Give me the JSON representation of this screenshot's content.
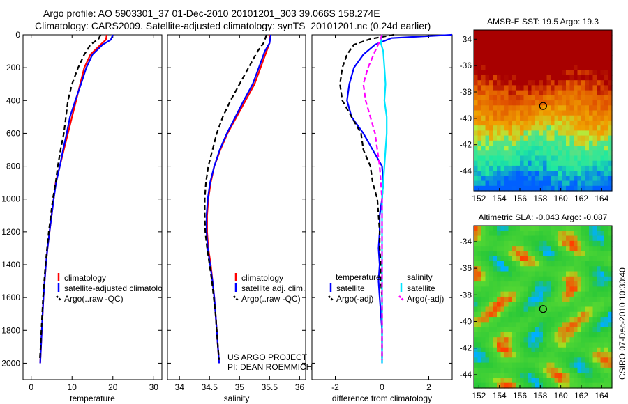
{
  "header": {
    "line1": "Argo profile: AO 5903301_37 01-Dec-2010 20101201_303 39.066S 158.274E",
    "line2": "Climatology: CARS2009. Satellite-adjusted climatology: synTS_20101201.nc (0.24d earlier)"
  },
  "footer": {
    "project": "US ARGO PROJECT",
    "pi": "PI: DEAN ROEMMICH",
    "credit": "CSIRO 07-Dec-2010 10:30:40"
  },
  "chart_data": [
    {
      "type": "line",
      "panel": "temperature",
      "xlabel": "temperature",
      "ylabel": "",
      "xlim": [
        -2,
        32
      ],
      "ylim": [
        2100,
        0
      ],
      "y_reversed": true,
      "xticks": [
        0,
        10,
        20,
        30
      ],
      "yticks": [
        0,
        200,
        400,
        600,
        800,
        1000,
        1200,
        1400,
        1600,
        1800,
        2000
      ],
      "legend": [
        "climatology",
        "satellite-adjusted climatology",
        "Argo(..raw -QC)"
      ],
      "legend_visible": [
        "climatology",
        "satellite-adjusted climatolo",
        "Argo(..raw -QC)"
      ],
      "series": [
        {
          "name": "climatology",
          "color": "#ff0000",
          "style": "solid",
          "points": [
            [
              18.5,
              0
            ],
            [
              18.3,
              30
            ],
            [
              17.0,
              60
            ],
            [
              14.5,
              120
            ],
            [
              13.0,
              200
            ],
            [
              12.0,
              300
            ],
            [
              11.0,
              400
            ],
            [
              10.0,
              500
            ],
            [
              9.0,
              600
            ],
            [
              8.0,
              700
            ],
            [
              7.0,
              800
            ],
            [
              6.0,
              900
            ],
            [
              5.5,
              1000
            ],
            [
              5.0,
              1100
            ],
            [
              4.5,
              1200
            ],
            [
              4.0,
              1300
            ],
            [
              3.6,
              1400
            ],
            [
              3.3,
              1500
            ],
            [
              3.0,
              1600
            ],
            [
              2.8,
              1700
            ],
            [
              2.6,
              1800
            ],
            [
              2.4,
              1900
            ],
            [
              2.2,
              2000
            ]
          ]
        },
        {
          "name": "satellite-adjusted climatology",
          "color": "#0000ff",
          "style": "solid",
          "points": [
            [
              20.0,
              0
            ],
            [
              19.5,
              30
            ],
            [
              17.5,
              60
            ],
            [
              15.0,
              120
            ],
            [
              13.5,
              200
            ],
            [
              12.2,
              300
            ],
            [
              10.8,
              400
            ],
            [
              9.5,
              500
            ],
            [
              8.7,
              600
            ],
            [
              7.8,
              700
            ],
            [
              7.0,
              800
            ],
            [
              6.1,
              900
            ],
            [
              5.5,
              1000
            ],
            [
              5.0,
              1100
            ],
            [
              4.5,
              1200
            ],
            [
              4.0,
              1300
            ],
            [
              3.6,
              1400
            ],
            [
              3.3,
              1500
            ],
            [
              3.0,
              1600
            ],
            [
              2.8,
              1700
            ],
            [
              2.6,
              1800
            ],
            [
              2.4,
              1900
            ],
            [
              2.2,
              2000
            ]
          ]
        },
        {
          "name": "Argo(..raw -QC)",
          "color": "#000000",
          "style": "dashed",
          "points": [
            [
              17.0,
              0
            ],
            [
              16.5,
              25
            ],
            [
              14.5,
              60
            ],
            [
              13.0,
              120
            ],
            [
              11.5,
              200
            ],
            [
              10.0,
              300
            ],
            [
              9.0,
              400
            ],
            [
              8.5,
              500
            ],
            [
              8.0,
              600
            ],
            [
              7.2,
              700
            ],
            [
              6.5,
              800
            ],
            [
              6.0,
              900
            ],
            [
              5.3,
              1000
            ],
            [
              4.8,
              1100
            ],
            [
              4.3,
              1200
            ],
            [
              3.9,
              1300
            ],
            [
              3.5,
              1400
            ],
            [
              3.2,
              1500
            ],
            [
              2.9,
              1600
            ],
            [
              2.7,
              1700
            ],
            [
              2.5,
              1800
            ],
            [
              2.3,
              1900
            ],
            [
              2.1,
              1980
            ]
          ]
        }
      ]
    },
    {
      "type": "line",
      "panel": "salinity",
      "xlabel": "salinity",
      "ylabel": "",
      "xlim": [
        33.8,
        36.1
      ],
      "ylim": [
        2100,
        0
      ],
      "y_reversed": true,
      "xticks": [
        34,
        34.5,
        35,
        35.5,
        36
      ],
      "legend": [
        "climatology",
        "satellite adj. clim.",
        "Argo(..raw -QC)"
      ],
      "series": [
        {
          "name": "climatology",
          "color": "#ff0000",
          "style": "solid",
          "points": [
            [
              35.5,
              0
            ],
            [
              35.5,
              50
            ],
            [
              35.45,
              100
            ],
            [
              35.35,
              200
            ],
            [
              35.25,
              300
            ],
            [
              35.1,
              400
            ],
            [
              34.95,
              500
            ],
            [
              34.8,
              600
            ],
            [
              34.68,
              700
            ],
            [
              34.58,
              800
            ],
            [
              34.52,
              900
            ],
            [
              34.48,
              1000
            ],
            [
              34.46,
              1100
            ],
            [
              34.46,
              1200
            ],
            [
              34.48,
              1300
            ],
            [
              34.52,
              1400
            ],
            [
              34.55,
              1500
            ],
            [
              34.58,
              1600
            ],
            [
              34.6,
              1700
            ],
            [
              34.62,
              1800
            ],
            [
              34.64,
              1900
            ],
            [
              34.66,
              2000
            ]
          ]
        },
        {
          "name": "satellite adj. clim.",
          "color": "#0000ff",
          "style": "solid",
          "points": [
            [
              35.52,
              0
            ],
            [
              35.5,
              50
            ],
            [
              35.42,
              100
            ],
            [
              35.32,
              200
            ],
            [
              35.22,
              300
            ],
            [
              35.07,
              400
            ],
            [
              34.93,
              500
            ],
            [
              34.79,
              600
            ],
            [
              34.67,
              700
            ],
            [
              34.58,
              800
            ],
            [
              34.51,
              900
            ],
            [
              34.47,
              1000
            ],
            [
              34.45,
              1100
            ],
            [
              34.45,
              1200
            ],
            [
              34.47,
              1300
            ],
            [
              34.51,
              1400
            ],
            [
              34.55,
              1500
            ],
            [
              34.58,
              1600
            ],
            [
              34.6,
              1700
            ],
            [
              34.62,
              1800
            ],
            [
              34.64,
              1900
            ],
            [
              34.66,
              2000
            ]
          ]
        },
        {
          "name": "Argo(..raw -QC)",
          "color": "#000000",
          "style": "dashed",
          "points": [
            [
              35.45,
              0
            ],
            [
              35.4,
              50
            ],
            [
              35.3,
              100
            ],
            [
              35.15,
              200
            ],
            [
              35.0,
              300
            ],
            [
              34.85,
              400
            ],
            [
              34.72,
              500
            ],
            [
              34.62,
              600
            ],
            [
              34.55,
              700
            ],
            [
              34.48,
              800
            ],
            [
              34.44,
              900
            ],
            [
              34.42,
              1000
            ],
            [
              34.42,
              1100
            ],
            [
              34.43,
              1200
            ],
            [
              34.46,
              1300
            ],
            [
              34.5,
              1400
            ],
            [
              34.54,
              1500
            ],
            [
              34.57,
              1600
            ],
            [
              34.6,
              1700
            ],
            [
              34.62,
              1800
            ],
            [
              34.64,
              1900
            ],
            [
              34.66,
              1980
            ]
          ]
        }
      ]
    },
    {
      "type": "line",
      "panel": "difference",
      "xlabel": "difference from climatology",
      "ylabel": "",
      "xlim": [
        -3,
        3
      ],
      "ylim": [
        2100,
        0
      ],
      "y_reversed": true,
      "xticks": [
        -2,
        0,
        2
      ],
      "legend_left_title": "temperature",
      "legend_right_title": "salinity",
      "legend_left": [
        "satellite",
        "Argo(-adj)"
      ],
      "legend_right": [
        "satellite",
        "Argo(-adj)"
      ],
      "series": [
        {
          "name": "temperature satellite",
          "color": "#0000ff",
          "style": "solid",
          "points": [
            [
              3.0,
              0
            ],
            [
              0.4,
              20
            ],
            [
              -0.3,
              60
            ],
            [
              -0.8,
              120
            ],
            [
              -1.2,
              200
            ],
            [
              -1.4,
              300
            ],
            [
              -1.5,
              400
            ],
            [
              -1.3,
              500
            ],
            [
              -0.8,
              600
            ],
            [
              -0.4,
              700
            ],
            [
              0.0,
              800
            ],
            [
              0.05,
              900
            ],
            [
              0.0,
              1000
            ],
            [
              -0.1,
              1100
            ],
            [
              -0.1,
              1200
            ],
            [
              -0.15,
              1300
            ],
            [
              -0.1,
              1400
            ],
            [
              -0.15,
              1500
            ],
            [
              -0.1,
              1600
            ],
            [
              -0.05,
              1700
            ],
            [
              0.0,
              1800
            ],
            [
              0.0,
              2000
            ]
          ]
        },
        {
          "name": "temperature Argo(-adj)",
          "color": "#000000",
          "style": "dashed",
          "points": [
            [
              0.5,
              0
            ],
            [
              -0.5,
              25
            ],
            [
              -1.2,
              60
            ],
            [
              -1.5,
              120
            ],
            [
              -1.7,
              200
            ],
            [
              -1.8,
              300
            ],
            [
              -1.7,
              400
            ],
            [
              -1.3,
              500
            ],
            [
              -0.9,
              600
            ],
            [
              -0.8,
              700
            ],
            [
              -0.5,
              800
            ],
            [
              -0.4,
              900
            ],
            [
              -0.2,
              1000
            ],
            [
              -0.15,
              1100
            ],
            [
              -0.1,
              1200
            ],
            [
              -0.1,
              1300
            ],
            [
              -0.05,
              1400
            ],
            [
              -0.05,
              1500
            ],
            [
              0.0,
              1600
            ],
            [
              0.0,
              1700
            ],
            [
              0.0,
              1800
            ],
            [
              0.0,
              1980
            ]
          ]
        },
        {
          "name": "salinity satellite",
          "color": "#00e5ff",
          "style": "solid",
          "points": [
            [
              0.0,
              0
            ],
            [
              -0.05,
              50
            ],
            [
              0.05,
              100
            ],
            [
              0.1,
              200
            ],
            [
              0.15,
              300
            ],
            [
              0.1,
              400
            ],
            [
              0.2,
              500
            ],
            [
              0.2,
              600
            ],
            [
              0.15,
              700
            ],
            [
              0.1,
              800
            ],
            [
              0.05,
              900
            ],
            [
              0.0,
              1000
            ],
            [
              0.0,
              1200
            ],
            [
              0.0,
              1400
            ],
            [
              0.0,
              1600
            ],
            [
              0.0,
              1800
            ],
            [
              0.0,
              2000
            ]
          ]
        },
        {
          "name": "salinity Argo(-adj)",
          "color": "#ff00ff",
          "style": "dashed",
          "points": [
            [
              0.0,
              0
            ],
            [
              -0.1,
              40
            ],
            [
              -0.3,
              100
            ],
            [
              -0.6,
              200
            ],
            [
              -0.8,
              300
            ],
            [
              -0.7,
              400
            ],
            [
              -0.5,
              500
            ],
            [
              -0.3,
              600
            ],
            [
              -0.2,
              700
            ],
            [
              -0.1,
              800
            ],
            [
              -0.05,
              900
            ],
            [
              0.0,
              1000
            ],
            [
              0.0,
              1200
            ],
            [
              0.0,
              1400
            ],
            [
              0.0,
              1600
            ],
            [
              0.0,
              1800
            ],
            [
              0.0,
              1980
            ]
          ]
        }
      ]
    },
    {
      "type": "heatmap",
      "panel": "sst_map",
      "title": "AMSR-E SST: 19.5 Argo: 19.3",
      "xlim": [
        151.5,
        165
      ],
      "ylim": [
        -45.5,
        -33.3
      ],
      "xticks": [
        152,
        154,
        156,
        158,
        160,
        162,
        164
      ],
      "yticks": [
        -34,
        -36,
        -38,
        -40,
        -42,
        -44
      ],
      "marker": {
        "lon": 158.274,
        "lat": -39.066
      },
      "colors": {
        "warm": "#a80000",
        "mid": "#f0a000",
        "cool": "#1ee9a0",
        "cold": "#0060ff"
      }
    },
    {
      "type": "heatmap",
      "panel": "sla_map",
      "title": "Altimetric SLA: -0.043 Argo: -0.087",
      "xlim": [
        151.5,
        165
      ],
      "ylim": [
        -45,
        -32.8
      ],
      "xticks": [
        152,
        154,
        156,
        158,
        160,
        162,
        164
      ],
      "yticks": [
        -34,
        -36,
        -38,
        -40,
        -42,
        -44
      ],
      "marker": {
        "lon": 158.274,
        "lat": -39.066
      },
      "colors": {
        "base": "#28c838",
        "high": "#ff4000",
        "low": "#00b0ff"
      }
    }
  ]
}
